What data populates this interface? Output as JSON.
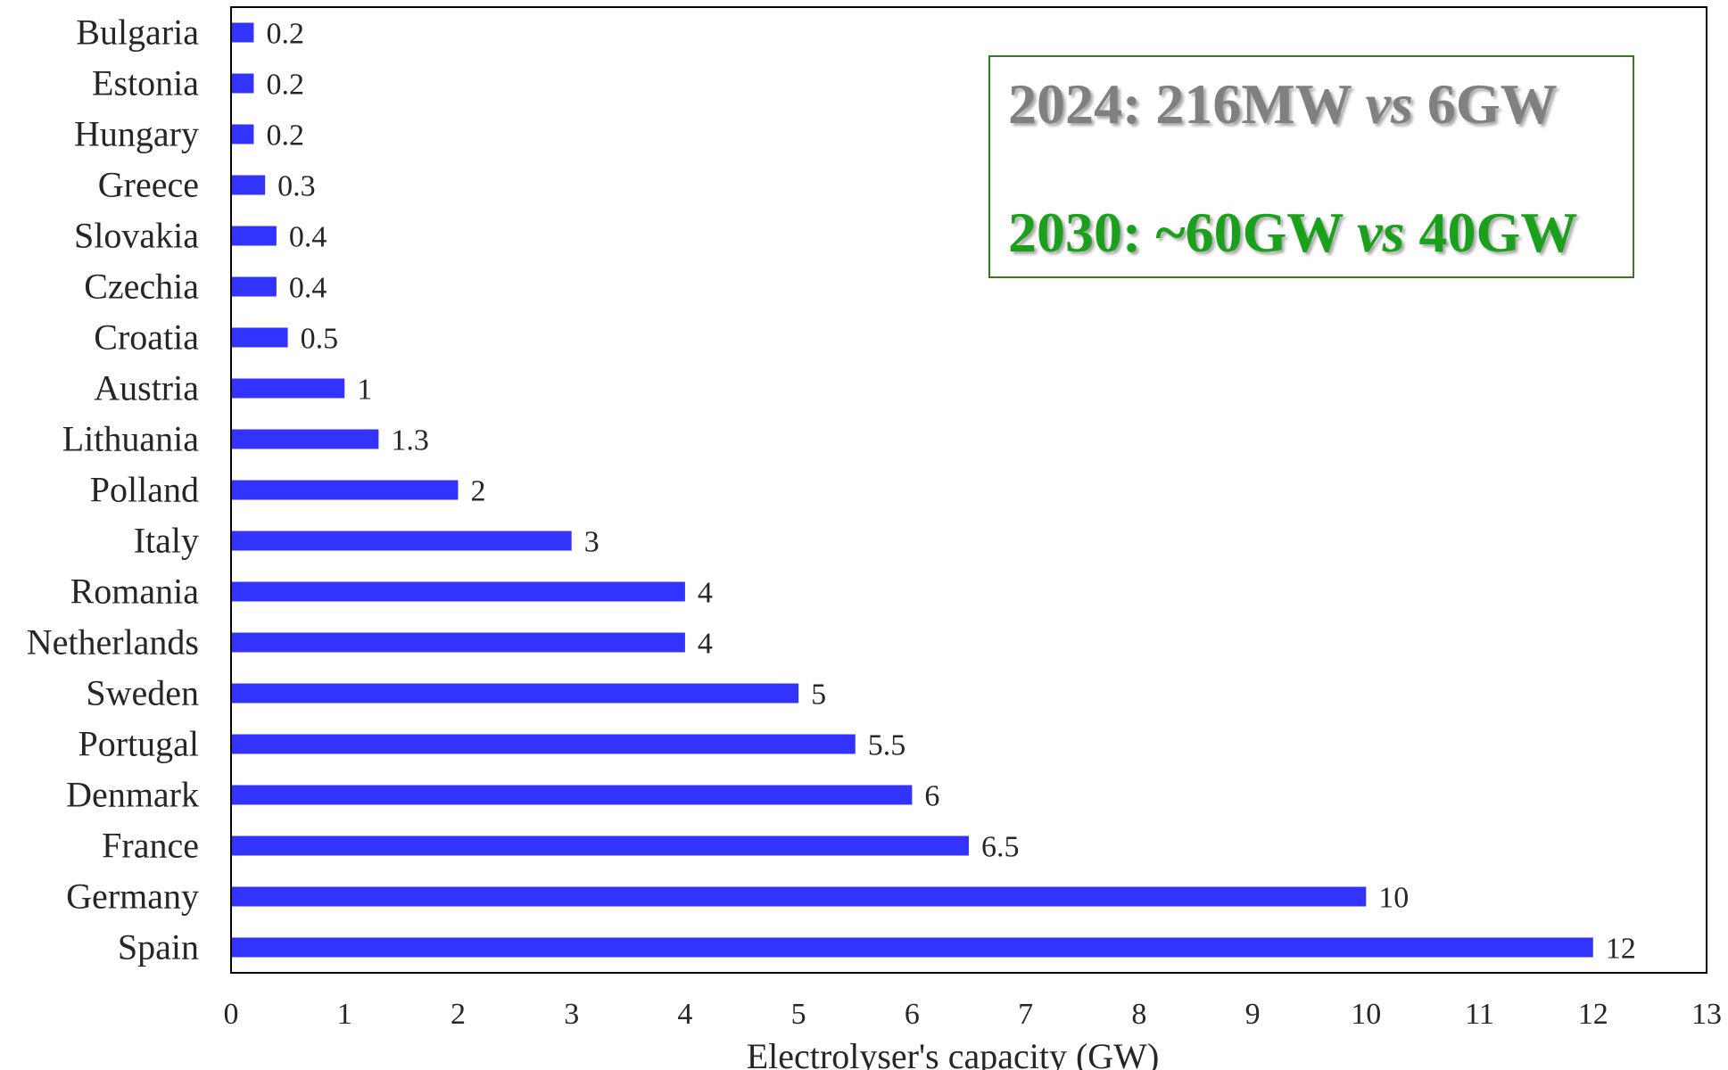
{
  "chart_data": {
    "type": "bar",
    "orientation": "horizontal",
    "categories": [
      "Bulgaria",
      "Estonia",
      "Hungary",
      "Greece",
      "Slovakia",
      "Czechia",
      "Croatia",
      "Austria",
      "Lithuania",
      "Polland",
      "Italy",
      "Romania",
      "Netherlands",
      "Sweden",
      "Portugal",
      "Denmark",
      "France",
      "Germany",
      "Spain"
    ],
    "values": [
      0.2,
      0.2,
      0.2,
      0.3,
      0.4,
      0.4,
      0.5,
      1,
      1.3,
      2,
      3,
      4,
      4,
      5,
      5.5,
      6,
      6.5,
      10,
      12
    ],
    "value_labels": [
      "0.2",
      "0.2",
      "0.2",
      "0.3",
      "0.4",
      "0.4",
      "0.5",
      "1",
      "1.3",
      "2",
      "3",
      "4",
      "4",
      "5",
      "5.5",
      "6",
      "6.5",
      "10",
      "12"
    ],
    "xlabel": "Electrolyser's capacity (GW)",
    "ylabel": "",
    "xlim": [
      0,
      13
    ],
    "xticks": [
      "0",
      "1",
      "2",
      "3",
      "4",
      "5",
      "6",
      "7",
      "8",
      "9",
      "10",
      "11",
      "12",
      "13"
    ],
    "grid": false,
    "bar_color": "#3333ff"
  },
  "annotation": {
    "line1_year": "2024: 216MW ",
    "line1_vs": "vs",
    "line1_target": " 6GW",
    "line2_year": "2030: ~60GW ",
    "line2_vs": "vs",
    "line2_target": " 40GW",
    "line1_color": "#808080",
    "line2_color": "#1aa01a",
    "border_color": "#3a7a1e"
  }
}
